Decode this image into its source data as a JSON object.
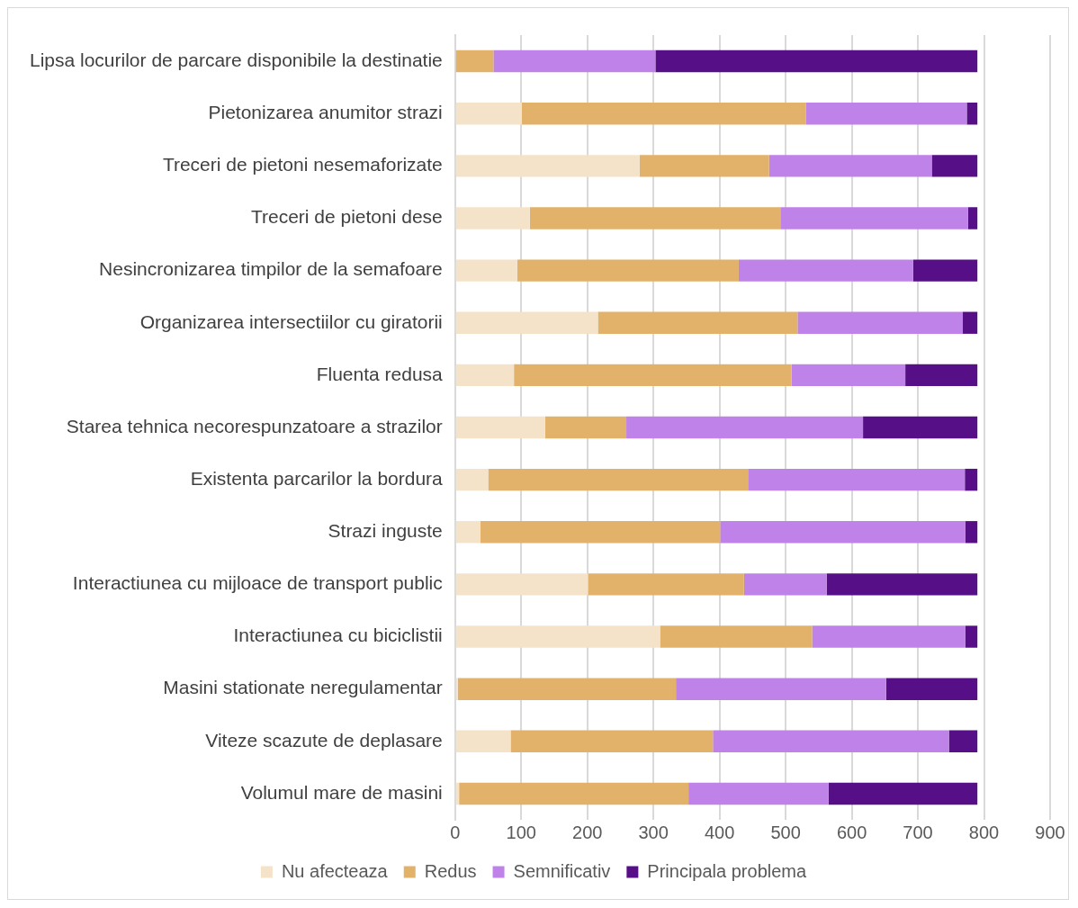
{
  "chart_data": {
    "type": "bar",
    "orientation": "horizontal",
    "stacked": true,
    "categories": [
      "Lipsa locurilor de parcare disponibile la destinatie",
      "Pietonizarea anumitor strazi",
      "Treceri de pietoni nesemaforizate",
      "Treceri de pietoni dese",
      "Nesincronizarea timpilor de la semafoare",
      "Organizarea intersectiilor cu giratorii",
      "Fluenta redusa",
      "Starea tehnica necorespunzatoare a strazilor",
      "Existenta parcarilor la bordura",
      "Strazi inguste",
      "Interactiunea cu mijloace de transport public",
      "Interactiunea cu biciclistii",
      "Masini stationate neregulamentar",
      "Viteze scazute de deplasare",
      "Volumul mare de masini"
    ],
    "series": [
      {
        "name": "Nu afecteaza",
        "color": "#f5e3c9",
        "values": [
          0,
          101,
          279,
          113,
          94,
          216,
          89,
          136,
          50,
          38,
          201,
          310,
          4,
          84,
          6
        ]
      },
      {
        "name": "Redus",
        "color": "#e2b26b",
        "values": [
          58,
          430,
          196,
          379,
          335,
          302,
          420,
          123,
          393,
          363,
          236,
          230,
          330,
          306,
          347
        ]
      },
      {
        "name": "Semnificativ",
        "color": "#bf82e8",
        "values": [
          245,
          243,
          246,
          284,
          264,
          250,
          172,
          358,
          328,
          371,
          125,
          232,
          318,
          357,
          212
        ]
      },
      {
        "name": "Principala problema",
        "color": "#560f87",
        "values": [
          487,
          16,
          69,
          14,
          97,
          22,
          109,
          173,
          19,
          18,
          228,
          18,
          138,
          43,
          225
        ]
      }
    ],
    "xlim": [
      0,
      900
    ],
    "xticks": [
      0,
      100,
      200,
      300,
      400,
      500,
      600,
      700,
      800,
      900
    ],
    "grid": "x",
    "legend": "bottom"
  }
}
